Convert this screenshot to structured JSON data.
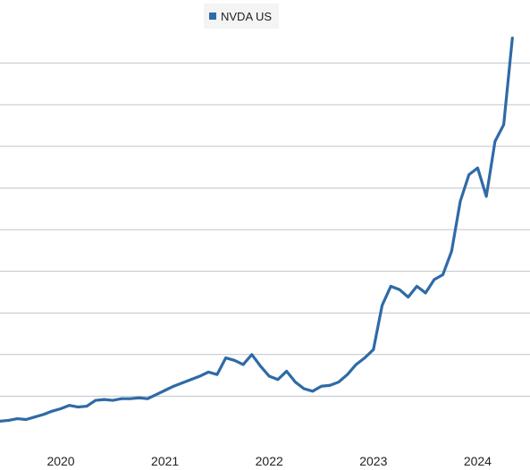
{
  "chart_data": {
    "type": "line",
    "title": "",
    "xlabel": "",
    "ylabel": "",
    "legend_position": "top-center",
    "grid": true,
    "colors": {
      "series": "#2f6aa6",
      "grid": "#bfc5cb"
    },
    "x_ticks": [
      "2020",
      "2021",
      "2022",
      "2023",
      "2024"
    ],
    "series": [
      {
        "name": "NVDA US",
        "x": [
          "2019-06",
          "2019-07",
          "2019-08",
          "2019-09",
          "2019-10",
          "2019-11",
          "2019-12",
          "2020-01",
          "2020-02",
          "2020-03",
          "2020-04",
          "2020-05",
          "2020-06",
          "2020-07",
          "2020-08",
          "2020-09",
          "2020-10",
          "2020-11",
          "2020-12",
          "2021-01",
          "2021-02",
          "2021-03",
          "2021-04",
          "2021-05",
          "2021-06",
          "2021-07",
          "2021-08",
          "2021-09",
          "2021-10",
          "2021-11",
          "2021-12",
          "2022-01",
          "2022-02",
          "2022-03",
          "2022-04",
          "2022-05",
          "2022-06",
          "2022-07",
          "2022-08",
          "2022-09",
          "2022-10",
          "2022-11",
          "2022-12",
          "2023-01",
          "2023-02",
          "2023-03",
          "2023-04",
          "2023-05",
          "2023-06",
          "2023-07",
          "2023-08",
          "2023-09",
          "2023-10",
          "2023-11",
          "2023-12",
          "2024-01",
          "2024-02",
          "2024-03",
          "2024-04",
          "2024-05"
        ],
        "y": [
          10.0,
          10.5,
          11.5,
          11.0,
          12.5,
          14.0,
          16.0,
          17.5,
          19.5,
          18.5,
          19.0,
          22.5,
          23.0,
          22.5,
          23.5,
          23.5,
          24.0,
          23.5,
          26.0,
          28.5,
          31.0,
          33.0,
          35.0,
          37.0,
          39.5,
          38.0,
          48.0,
          46.5,
          44.0,
          50.0,
          43.0,
          37.0,
          35.0,
          40.0,
          33.5,
          29.5,
          28.0,
          31.0,
          31.5,
          33.5,
          38.0,
          44.0,
          48.0,
          53.0,
          79.5,
          91.0,
          89.0,
          84.5,
          91.0,
          87.0,
          95.0,
          98.0,
          112.0,
          142.0,
          158.0,
          162.0,
          145.0,
          178.0,
          188.0,
          240.0
        ]
      }
    ],
    "ylim": [
      0,
      250
    ]
  }
}
